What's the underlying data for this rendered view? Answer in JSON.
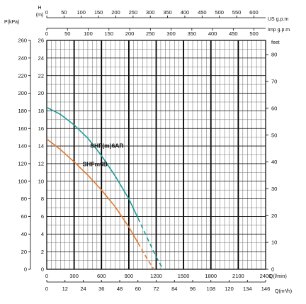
{
  "chart_data": {
    "type": "line",
    "grid": true,
    "axes": {
      "h_m": {
        "label": "H",
        "unit": "(m)",
        "range": [
          0,
          26
        ],
        "major_ticks": [
          0,
          2,
          4,
          6,
          8,
          10,
          12,
          14,
          16,
          18,
          20,
          22,
          24,
          26
        ]
      },
      "p_kpa": {
        "label": "P(kPa)",
        "range": [
          0,
          260
        ],
        "ticks": [
          0,
          20,
          40,
          60,
          80,
          100,
          120,
          140,
          160,
          180,
          200,
          220,
          240,
          260
        ]
      },
      "feet": {
        "label": "feet",
        "range": [
          0,
          85.3
        ],
        "ticks": [
          0,
          10,
          20,
          30,
          40,
          50,
          60,
          70,
          80
        ]
      },
      "q_lmin": {
        "label": "Q(l/min)",
        "range": [
          0,
          2400
        ],
        "ticks": [
          0,
          300,
          600,
          900,
          1200,
          1500,
          1800,
          2100,
          2400
        ]
      },
      "q_m3h": {
        "label": "Q(m³/h)",
        "range": [
          0,
          144
        ],
        "ticks": [
          0,
          12,
          24,
          36,
          48,
          60,
          72,
          84,
          96,
          108,
          120,
          134,
          146
        ]
      },
      "us_gpm": {
        "label": "US  g.p.m",
        "range": [
          0,
          634
        ],
        "ticks": [
          0,
          50,
          100,
          150,
          200,
          250,
          300,
          350,
          400,
          450,
          500,
          550,
          600
        ]
      },
      "imp_gpm": {
        "label": "Imp  g.p.m",
        "range": [
          0,
          528
        ],
        "ticks": [
          0,
          50,
          100,
          150,
          200,
          250,
          300,
          350,
          400,
          450,
          500
        ]
      }
    },
    "series": [
      {
        "name": "SHF(m)6AR",
        "color": "#1a9a98",
        "x": [
          0,
          150,
          300,
          450,
          600,
          750,
          900,
          1000,
          1100,
          1200,
          1275
        ],
        "y": [
          18.4,
          17.6,
          16.4,
          14.9,
          12.9,
          10.6,
          8.0,
          5.8,
          3.6,
          1.4,
          0
        ],
        "dashed_from_x": 1000
      },
      {
        "name": "SHFm6B",
        "color": "#e07a2e",
        "x": [
          0,
          150,
          300,
          450,
          600,
          750,
          900,
          1000,
          1100,
          1175
        ],
        "y": [
          14.8,
          13.6,
          12.2,
          10.7,
          9.0,
          7.1,
          4.8,
          3.0,
          1.2,
          0
        ],
        "dashed_from_x": 1000
      }
    ]
  }
}
